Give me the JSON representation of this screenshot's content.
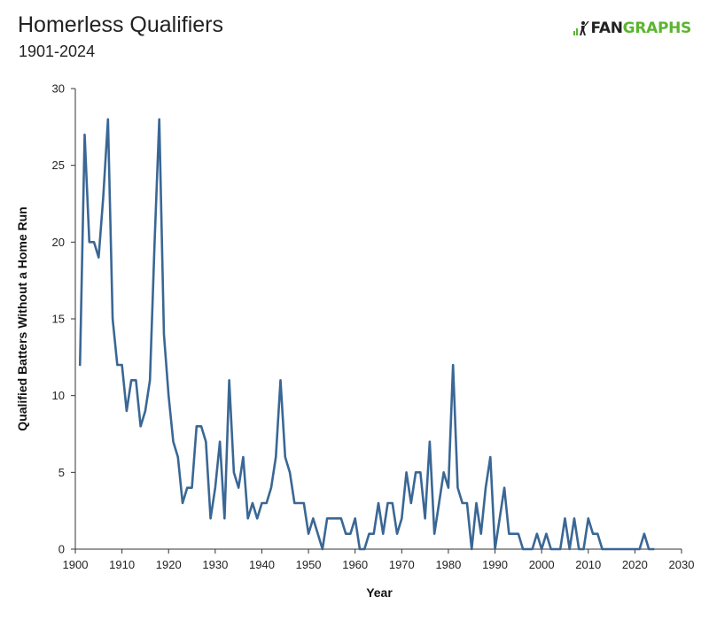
{
  "header": {
    "title": "Homerless Qualifiers",
    "subtitle": "1901-2024",
    "logo_left": "FAN",
    "logo_right": "GRAPHS"
  },
  "colors": {
    "line": "#3a6795",
    "accent": "#5cb531",
    "axis": "#333333"
  },
  "chart_data": {
    "type": "line",
    "title": "Homerless Qualifiers",
    "subtitle": "1901-2024",
    "xlabel": "Year",
    "ylabel": "Qualified Batters Without a Home Run",
    "xlim": [
      1900,
      2030
    ],
    "ylim": [
      0,
      30
    ],
    "xticks": [
      1900,
      1910,
      1920,
      1930,
      1940,
      1950,
      1960,
      1970,
      1980,
      1990,
      2000,
      2010,
      2020,
      2030
    ],
    "yticks": [
      0,
      5,
      10,
      15,
      20,
      25,
      30
    ],
    "grid": false,
    "series": [
      {
        "name": "",
        "x": [
          1901,
          1902,
          1903,
          1904,
          1905,
          1906,
          1907,
          1908,
          1909,
          1910,
          1911,
          1912,
          1913,
          1914,
          1915,
          1916,
          1917,
          1918,
          1919,
          1920,
          1921,
          1922,
          1923,
          1924,
          1925,
          1926,
          1927,
          1928,
          1929,
          1930,
          1931,
          1932,
          1933,
          1934,
          1935,
          1936,
          1937,
          1938,
          1939,
          1940,
          1941,
          1942,
          1943,
          1944,
          1945,
          1946,
          1947,
          1948,
          1949,
          1950,
          1951,
          1952,
          1953,
          1954,
          1955,
          1956,
          1957,
          1958,
          1959,
          1960,
          1961,
          1962,
          1963,
          1964,
          1965,
          1966,
          1967,
          1968,
          1969,
          1970,
          1971,
          1972,
          1973,
          1974,
          1975,
          1976,
          1977,
          1978,
          1979,
          1980,
          1981,
          1982,
          1983,
          1984,
          1985,
          1986,
          1987,
          1988,
          1989,
          1990,
          1991,
          1992,
          1993,
          1994,
          1995,
          1996,
          1997,
          1998,
          1999,
          2000,
          2001,
          2002,
          2003,
          2004,
          2005,
          2006,
          2007,
          2008,
          2009,
          2010,
          2011,
          2012,
          2013,
          2014,
          2015,
          2016,
          2017,
          2018,
          2019,
          2020,
          2021,
          2022,
          2023,
          2024
        ],
        "y": [
          12,
          27,
          20,
          20,
          19,
          23,
          28,
          15,
          12,
          12,
          9,
          11,
          11,
          8,
          9,
          11,
          20,
          28,
          14,
          10,
          7,
          6,
          3,
          4,
          4,
          8,
          8,
          7,
          2,
          4,
          7,
          2,
          11,
          5,
          4,
          6,
          2,
          3,
          2,
          3,
          3,
          4,
          6,
          11,
          6,
          5,
          3,
          3,
          3,
          1,
          2,
          1,
          0,
          2,
          2,
          2,
          2,
          1,
          1,
          2,
          0,
          0,
          1,
          1,
          3,
          1,
          3,
          3,
          1,
          2,
          5,
          3,
          5,
          5,
          2,
          7,
          1,
          3,
          5,
          4,
          12,
          4,
          3,
          3,
          0,
          3,
          1,
          4,
          6,
          0,
          2,
          4,
          1,
          1,
          1,
          0,
          0,
          0,
          1,
          0,
          1,
          0,
          0,
          0,
          2,
          0,
          2,
          0,
          0,
          2,
          1,
          1,
          0,
          0,
          0,
          0,
          0,
          0,
          0,
          0,
          0,
          1,
          0,
          0
        ]
      }
    ]
  }
}
